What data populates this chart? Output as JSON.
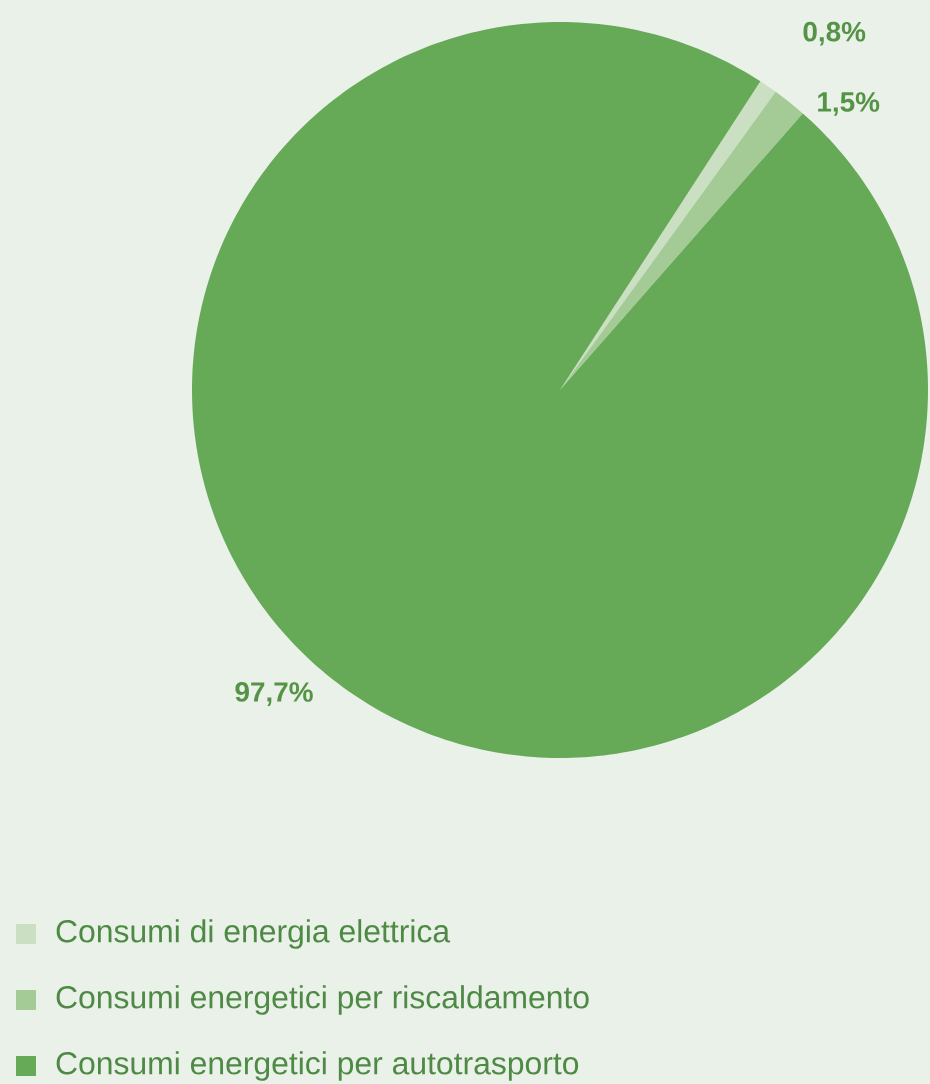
{
  "chart_data": {
    "type": "pie",
    "categories": [
      "Consumi di energia elettrica",
      "Consumi energetici per riscaldamento",
      "Consumi energetici per autotrasporto"
    ],
    "values": [
      0.8,
      1.5,
      97.7
    ],
    "colors": [
      "#cbdfc3",
      "#a4cb95",
      "#66aa58"
    ],
    "value_labels": [
      "0,8%",
      "1,5%",
      "97,7%"
    ],
    "legend": "bottom left"
  }
}
